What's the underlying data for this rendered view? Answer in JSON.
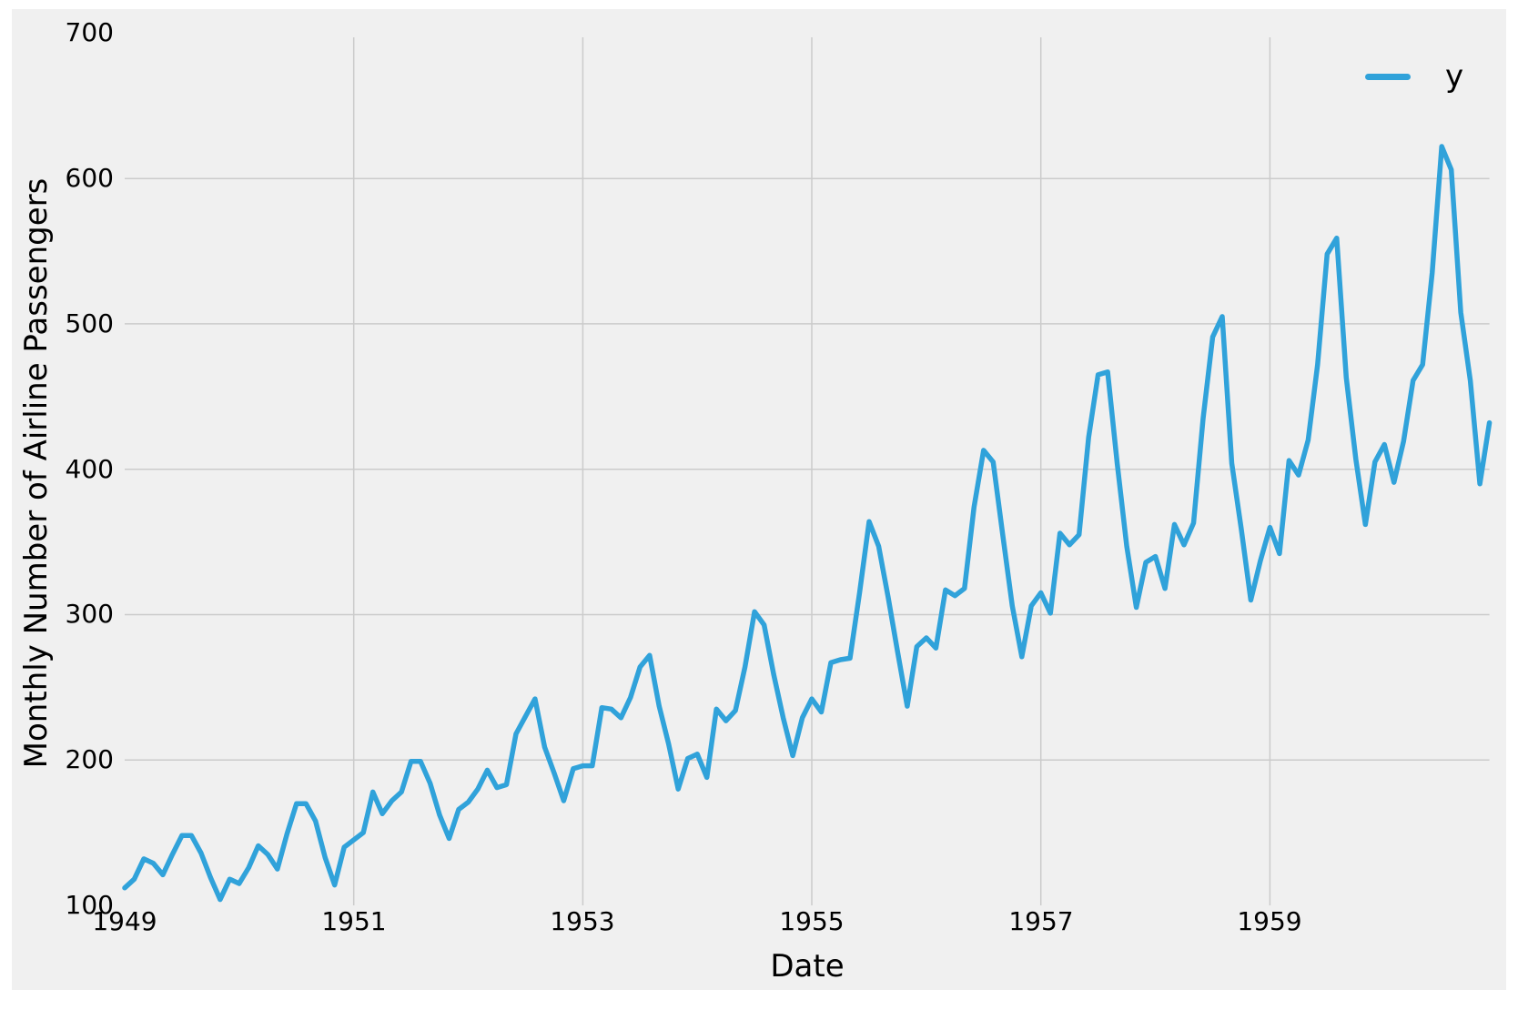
{
  "chart_data": {
    "type": "line",
    "title": "",
    "xlabel": "Date",
    "ylabel": "Monthly Number of Airline Passengers",
    "legend_position": "upper right",
    "grid": true,
    "x_start": "1949-01",
    "x_end": "1960-12",
    "x_frequency": "monthly",
    "xticks": [
      "1949",
      "1951",
      "1953",
      "1955",
      "1957",
      "1959"
    ],
    "yticks": [
      "100",
      "200",
      "300",
      "400",
      "500",
      "600",
      "700"
    ],
    "ylim": [
      100,
      700
    ],
    "series": [
      {
        "name": "y",
        "values": [
          112,
          118,
          132,
          129,
          121,
          135,
          148,
          148,
          136,
          119,
          104,
          118,
          115,
          126,
          141,
          135,
          125,
          149,
          170,
          170,
          158,
          133,
          114,
          140,
          145,
          150,
          178,
          163,
          172,
          178,
          199,
          199,
          184,
          162,
          146,
          166,
          171,
          180,
          193,
          181,
          183,
          218,
          230,
          242,
          209,
          191,
          172,
          194,
          196,
          196,
          236,
          235,
          229,
          243,
          264,
          272,
          237,
          211,
          180,
          201,
          204,
          188,
          235,
          227,
          234,
          264,
          302,
          293,
          259,
          229,
          203,
          229,
          242,
          233,
          267,
          269,
          270,
          315,
          364,
          347,
          312,
          274,
          237,
          278,
          284,
          277,
          317,
          313,
          318,
          374,
          413,
          405,
          355,
          306,
          271,
          306,
          315,
          301,
          356,
          348,
          355,
          422,
          465,
          467,
          404,
          347,
          305,
          336,
          340,
          318,
          362,
          348,
          363,
          435,
          491,
          505,
          404,
          359,
          310,
          337,
          360,
          342,
          406,
          396,
          420,
          472,
          548,
          559,
          463,
          407,
          362,
          405,
          417,
          391,
          419,
          461,
          472,
          535,
          622,
          606,
          508,
          461,
          390,
          432
        ]
      }
    ],
    "colors": {
      "line": "#30a2da",
      "figure_background": "#f0f0f0",
      "page_background": "#ffffff",
      "grid": "#cbcbcb",
      "text": "#000000"
    },
    "legend": {
      "label": "y"
    }
  }
}
